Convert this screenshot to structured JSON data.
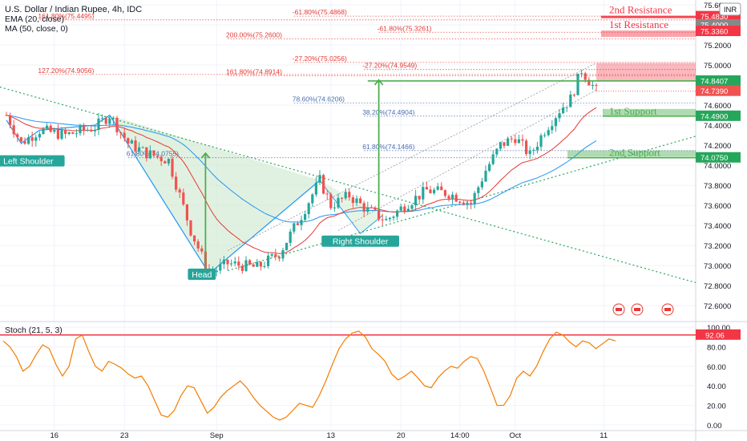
{
  "header": {
    "symbol_line": "U.S. Dollar / Indian Rupee, 4h, IDC",
    "ema_label": "EMA (20, close)",
    "ma_label": "MA (50, close, 0)",
    "stoch_label": "Stoch (21, 5, 3)",
    "currency_badge": "INR"
  },
  "colors": {
    "up": "#26a69a",
    "down": "#ef5350",
    "resistance": "#f23645",
    "support": "#4caf50",
    "fib_red": "#e53935",
    "fib_blue": "#4a6fb0",
    "ema": "#e53935",
    "ma": "#2196f3",
    "stoch": "#f57c00",
    "pattern_fill": "#c8e6c9",
    "trendline": "#26a65b"
  },
  "chart_data": [
    {
      "type": "candlestick",
      "title": "U.S. Dollar / Indian Rupee, 4h, IDC",
      "ylim": [
        72.45,
        75.6
      ],
      "y_ticks": [
        "75.6000",
        "75.4000",
        "75.2000",
        "75.0000",
        "74.8000",
        "74.6000",
        "74.4000",
        "74.2000",
        "74.0000",
        "73.8000",
        "73.6000",
        "73.4000",
        "73.2000",
        "73.0000",
        "72.8000",
        "72.6000"
      ],
      "x_ticks": [
        {
          "label": "16",
          "bar": 13
        },
        {
          "label": "23",
          "bar": 32
        },
        {
          "label": "Sep",
          "bar": 57
        },
        {
          "label": "13",
          "bar": 88
        },
        {
          "label": "20",
          "bar": 107
        },
        {
          "label": "14:00",
          "bar": 123
        },
        {
          "label": "Oct",
          "bar": 138
        },
        {
          "label": "11",
          "bar": 162
        }
      ],
      "bar_count": 186,
      "price_labels": [
        {
          "text": "75.4830",
          "value": 75.483,
          "color": "#f23645"
        },
        {
          "text": "75.4000",
          "value": 75.4,
          "color": "#888888"
        },
        {
          "text": "75.3360",
          "value": 75.336,
          "color": "#f23645"
        },
        {
          "text": "74.8407",
          "value": 74.8407,
          "color": "#26a65b"
        },
        {
          "text": "74.7390",
          "value": 74.739,
          "color": "#ef5350"
        },
        {
          "text": "74.4900",
          "value": 74.49,
          "color": "#26a65b"
        },
        {
          "text": "74.0750",
          "value": 74.075,
          "color": "#26a65b"
        }
      ],
      "levels": [
        {
          "label": "2nd Resistance",
          "value": 75.483,
          "color": "#f23645"
        },
        {
          "label": "1st Resistance",
          "value": 75.336,
          "color": "#f23645"
        },
        {
          "label": "1st Support",
          "value": 74.49,
          "color": "#4caf50"
        },
        {
          "label": "2nd Support",
          "value": 74.075,
          "color": "#4caf50"
        }
      ],
      "fib_labels": [
        {
          "text": "-61.80%(75.4868)",
          "value": 75.4868,
          "bar": 78,
          "color": "#e53935"
        },
        {
          "text": "161.80%(75.4495)",
          "value": 75.4495,
          "bar": 9,
          "color": "#e53935"
        },
        {
          "text": "-61.80%(75.3261)",
          "value": 75.3261,
          "bar": 101,
          "color": "#e53935"
        },
        {
          "text": "200.00%(75.2600)",
          "value": 75.26,
          "bar": 60,
          "color": "#e53935"
        },
        {
          "text": "-27.20%(75.0256)",
          "value": 75.0256,
          "bar": 78,
          "color": "#e53935"
        },
        {
          "text": "-27.20%(74.9549)",
          "value": 74.9549,
          "bar": 97,
          "color": "#e53935"
        },
        {
          "text": "127.20%(74.9056)",
          "value": 74.9056,
          "bar": 9,
          "color": "#e53935"
        },
        {
          "text": "161.80%(74.8914)",
          "value": 74.8914,
          "bar": 60,
          "color": "#e53935"
        },
        {
          "text": "78.60%(74.6206)",
          "value": 74.6206,
          "bar": 78,
          "color": "#4a6fb0"
        },
        {
          "text": "38.20%(74.4904)",
          "value": 74.4904,
          "bar": 97,
          "color": "#4a6fb0"
        },
        {
          "text": "61.80%(74.1466)",
          "value": 74.1466,
          "bar": 97,
          "color": "#4a6fb0"
        },
        {
          "text": "61.80%(74.0755)",
          "value": 74.0755,
          "bar": 33,
          "color": "#4a6fb0"
        }
      ],
      "pattern_labels": [
        {
          "text": "Left Shoulder",
          "bar": 3,
          "value": 74.02
        },
        {
          "text": "Head",
          "bar": 53,
          "value": 72.89
        },
        {
          "text": "Right Shoulder",
          "bar": 96,
          "value": 73.22
        }
      ],
      "targets": [
        {
          "bar": 54,
          "from": 72.95,
          "to": 74.12
        },
        {
          "bar": 101,
          "from": 73.55,
          "to": 74.85
        }
      ]
    },
    {
      "type": "line",
      "title": "Stoch (21, 5, 3)",
      "ylim": [
        -5,
        105
      ],
      "y_ticks": [
        "100.00",
        "80.00",
        "60.00",
        "40.00",
        "20.00",
        "0.00"
      ],
      "current_value_label": "92.06",
      "overbought_line": 92.06
    }
  ]
}
